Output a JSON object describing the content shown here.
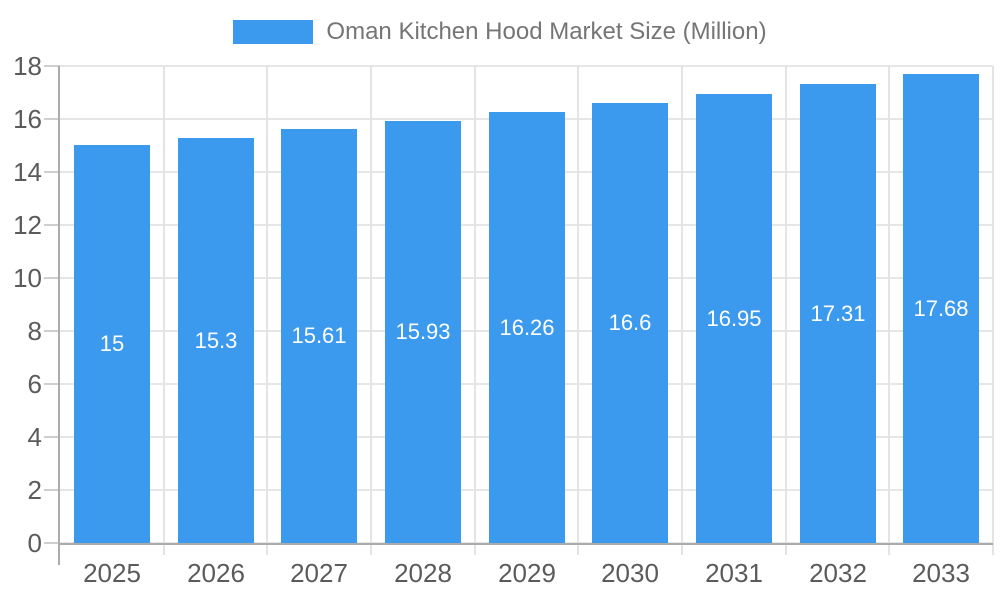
{
  "chart_data": {
    "type": "bar",
    "title": "",
    "legend": {
      "label": "Oman Kitchen Hood Market Size (Million)",
      "position": "top"
    },
    "categories": [
      "2025",
      "2026",
      "2027",
      "2028",
      "2029",
      "2030",
      "2031",
      "2032",
      "2033"
    ],
    "series": [
      {
        "name": "Oman Kitchen Hood Market Size (Million)",
        "values": [
          15,
          15.3,
          15.61,
          15.93,
          16.26,
          16.6,
          16.95,
          17.31,
          17.68
        ]
      }
    ],
    "data_labels": [
      "15",
      "15.3",
      "15.61",
      "15.93",
      "16.26",
      "16.6",
      "16.95",
      "17.31",
      "17.68"
    ],
    "xlabel": "",
    "ylabel": "",
    "ylim": [
      0,
      18
    ],
    "ytick_step": 2,
    "ytick_labels": [
      "0",
      "2",
      "4",
      "6",
      "8",
      "10",
      "12",
      "14",
      "16",
      "18"
    ],
    "grid": true,
    "legend_position": "top",
    "colors": {
      "bar": "#3B99EE",
      "horizontal_grid": "#E6E6E6",
      "vertical_grid": "#E4E4E4",
      "axis": "#ABABAB",
      "tick_label": "#5A5B5D",
      "legend_text": "#757575",
      "data_label": "#FFFFFF",
      "background": "#FFFFFF"
    }
  }
}
